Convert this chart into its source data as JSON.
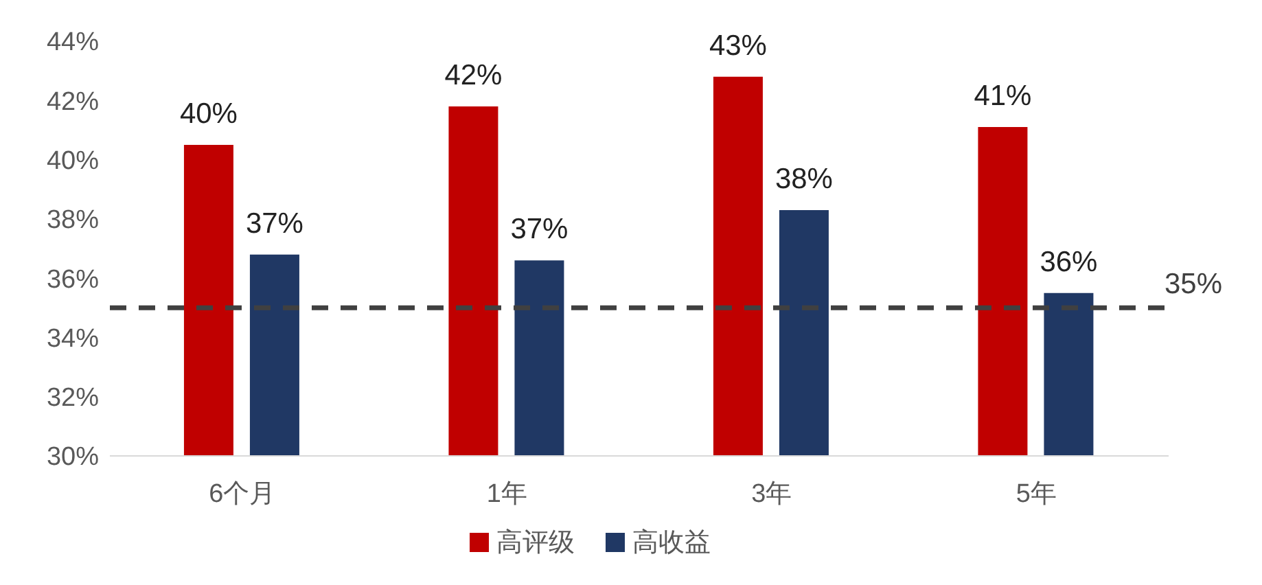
{
  "chart_data": {
    "type": "bar",
    "categories": [
      "6个月",
      "1年",
      "3年",
      "5年"
    ],
    "series": [
      {
        "name": "高评级",
        "color": "#c00000",
        "values": [
          40.5,
          41.8,
          42.8,
          41.1
        ],
        "value_labels": [
          "40%",
          "42%",
          "43%",
          "41%"
        ]
      },
      {
        "name": "高收益",
        "color": "#203864",
        "values": [
          36.8,
          36.6,
          38.3,
          35.5
        ],
        "value_labels": [
          "37%",
          "37%",
          "38%",
          "36%"
        ]
      }
    ],
    "ylim": [
      30,
      44
    ],
    "yticks": [
      {
        "value": 30,
        "label": "30%"
      },
      {
        "value": 32,
        "label": "32%"
      },
      {
        "value": 34,
        "label": "34%"
      },
      {
        "value": 36,
        "label": "36%"
      },
      {
        "value": 38,
        "label": "38%"
      },
      {
        "value": 40,
        "label": "40%"
      },
      {
        "value": 42,
        "label": "42%"
      },
      {
        "value": 44,
        "label": "44%"
      }
    ],
    "ref_lines": [
      {
        "axis": "y",
        "value": 35,
        "label": "35%",
        "color": "#404040",
        "line_style": "dashed"
      }
    ],
    "grid": false,
    "legend": "bottom"
  }
}
